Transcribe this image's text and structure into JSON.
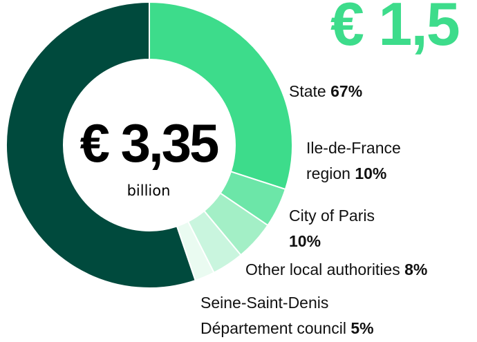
{
  "chart_data": {
    "type": "donut",
    "highlight": {
      "value": 1.5,
      "label": "€ 1,5",
      "color": "#3ddc8b"
    },
    "total": {
      "value": 3.35,
      "label": "€ 3,35",
      "unit": "billion"
    },
    "rest_color": "#004a3d",
    "series": [
      {
        "name": "State",
        "value": 67,
        "value_label": "67%",
        "color": "#3ddc8b"
      },
      {
        "name": "Ile-de-France region",
        "value": 10,
        "value_label": "10%",
        "color": "#6ce6a8"
      },
      {
        "name": "City of Paris",
        "value": 10,
        "value_label": "10%",
        "color": "#a3efc6"
      },
      {
        "name": "Other local authorities",
        "value": 8,
        "value_label": "8%",
        "color": "#c9f5de"
      },
      {
        "name": "Seine-Saint-Denis Département council",
        "value": 5,
        "value_label": "5%",
        "color": "#eafbf1"
      }
    ]
  }
}
